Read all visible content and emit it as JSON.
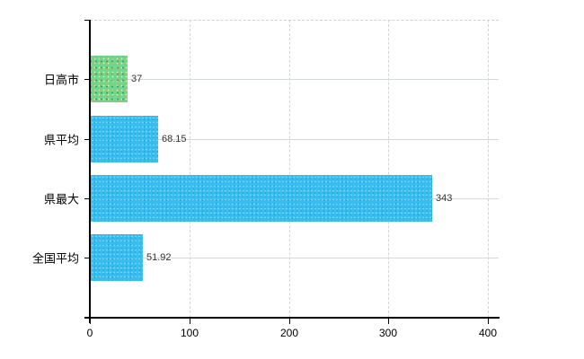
{
  "chart_data": {
    "type": "bar",
    "orientation": "horizontal",
    "title": "",
    "xlabel": "",
    "ylabel": "",
    "categories": [
      "日高市",
      "県平均",
      "県最大",
      "全国平均"
    ],
    "values": [
      37,
      68.15,
      343,
      51.92
    ],
    "value_labels": [
      "37",
      "68.15",
      "343",
      "51.92"
    ],
    "bar_color_names": [
      "green",
      "blue",
      "blue",
      "blue"
    ],
    "xlim": [
      0,
      400
    ],
    "x_tick_labels": [
      "0",
      "100",
      "200",
      "300",
      "400"
    ],
    "x_tick_values": [
      0,
      100,
      200,
      300,
      400
    ],
    "grid": true,
    "legend": false
  },
  "colors": {
    "background": "#ffffff",
    "axis": "#000000",
    "bar_green": "#6fd690",
    "bar_blue": "#38bdef",
    "grid_vertical_dashed": "#d4d4d8",
    "grid_horizontal": "#d3dcd3",
    "top_border_dashed": "#cfcfd4",
    "value_label_text": "#333333",
    "category_label_text": "#000000"
  }
}
